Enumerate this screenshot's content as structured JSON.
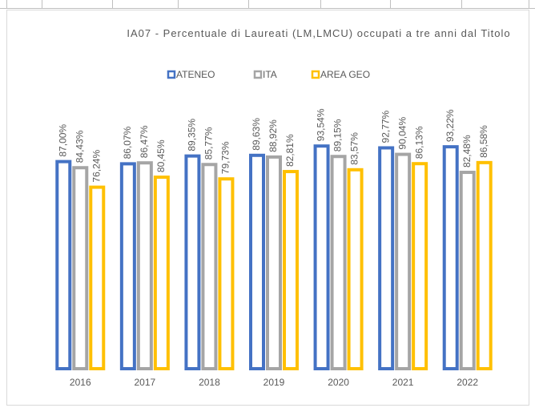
{
  "chart_data": {
    "type": "bar",
    "title": "IA07 - Percentuale di Laureati (LM,LMCU) occupati a tre anni dal Titolo",
    "categories": [
      "2016",
      "2017",
      "2018",
      "2019",
      "2020",
      "2021",
      "2022"
    ],
    "series": [
      {
        "name": "ATENEO",
        "color": "#4472c4",
        "values": [
          87.0,
          86.07,
          89.35,
          89.63,
          93.54,
          92.77,
          93.22
        ],
        "value_labels": [
          "87,00%",
          "86,07%",
          "89,35%",
          "89,63%",
          "93,54%",
          "92,77%",
          "93,22%"
        ]
      },
      {
        "name": "ITA",
        "color": "#a5a5a5",
        "values": [
          84.43,
          86.47,
          85.77,
          88.92,
          89.15,
          90.04,
          82.48
        ],
        "value_labels": [
          "84,43%",
          "86,47%",
          "85,77%",
          "88,92%",
          "89,15%",
          "90,04%",
          "82,48%"
        ]
      },
      {
        "name": "AREA GEO",
        "color": "#ffc000",
        "values": [
          76.24,
          80.45,
          79.73,
          82.81,
          83.57,
          86.13,
          86.58
        ],
        "value_labels": [
          "76,24%",
          "80,45%",
          "79,73%",
          "82,81%",
          "83,57%",
          "86,13%",
          "86,58%"
        ]
      }
    ],
    "ylim": [
      0,
      100
    ],
    "legend": "top"
  }
}
